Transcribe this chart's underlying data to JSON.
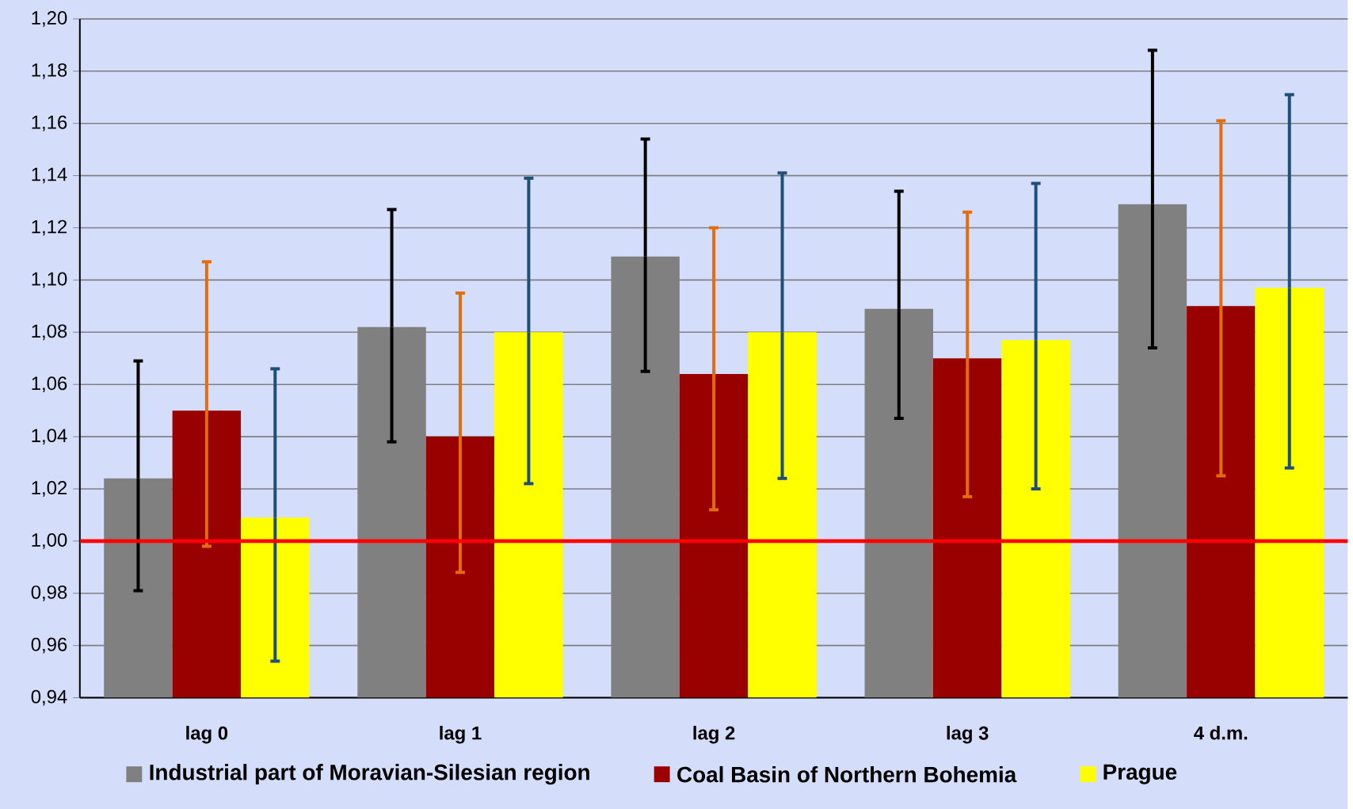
{
  "chart_data": {
    "type": "bar",
    "categories": [
      "lag 0",
      "lag 1",
      "lag 2",
      "lag 3",
      "4 d.m."
    ],
    "series": [
      {
        "name": "Industrial part of Moravian-Silesian region",
        "color": "#808080",
        "values": [
          1.024,
          1.082,
          1.109,
          1.089,
          1.129
        ],
        "errors": [
          [
            0.981,
            1.069
          ],
          [
            1.038,
            1.127
          ],
          [
            1.065,
            1.154
          ],
          [
            1.047,
            1.134
          ],
          [
            1.074,
            1.188
          ]
        ]
      },
      {
        "name": "Coal Basin of Northern Bohemia",
        "color": "#990000",
        "values": [
          1.05,
          1.04,
          1.064,
          1.07,
          1.09
        ],
        "errors": [
          [
            0.998,
            1.107
          ],
          [
            0.988,
            1.095
          ],
          [
            1.012,
            1.12
          ],
          [
            1.017,
            1.126
          ],
          [
            1.025,
            1.161
          ]
        ]
      },
      {
        "name": "Prague",
        "color": "#ffff00",
        "values": [
          1.009,
          1.08,
          1.08,
          1.077,
          1.097
        ],
        "errors": [
          [
            0.954,
            1.066
          ],
          [
            1.022,
            1.139
          ],
          [
            1.024,
            1.141
          ],
          [
            1.02,
            1.137
          ],
          [
            1.028,
            1.171
          ]
        ]
      }
    ],
    "ylim": [
      0.94,
      1.2
    ],
    "yticks": [
      {
        "value": 0.94,
        "label": "0,94"
      },
      {
        "value": 0.96,
        "label": "0,96"
      },
      {
        "value": 0.98,
        "label": "0,98"
      },
      {
        "value": 1.0,
        "label": "1,00"
      },
      {
        "value": 1.02,
        "label": "1,02"
      },
      {
        "value": 1.04,
        "label": "1,04"
      },
      {
        "value": 1.06,
        "label": "1,06"
      },
      {
        "value": 1.08,
        "label": "1,08"
      },
      {
        "value": 1.1,
        "label": "1,10"
      },
      {
        "value": 1.12,
        "label": "1,12"
      },
      {
        "value": 1.14,
        "label": "1,14"
      },
      {
        "value": 1.16,
        "label": "1,16"
      },
      {
        "value": 1.18,
        "label": "1,18"
      },
      {
        "value": 1.2,
        "label": "1,20"
      }
    ],
    "ref_lines": [
      {
        "axis": "y",
        "value": 1.0,
        "color": "#ff0000"
      }
    ],
    "grid": "y",
    "legend": "bottom"
  }
}
